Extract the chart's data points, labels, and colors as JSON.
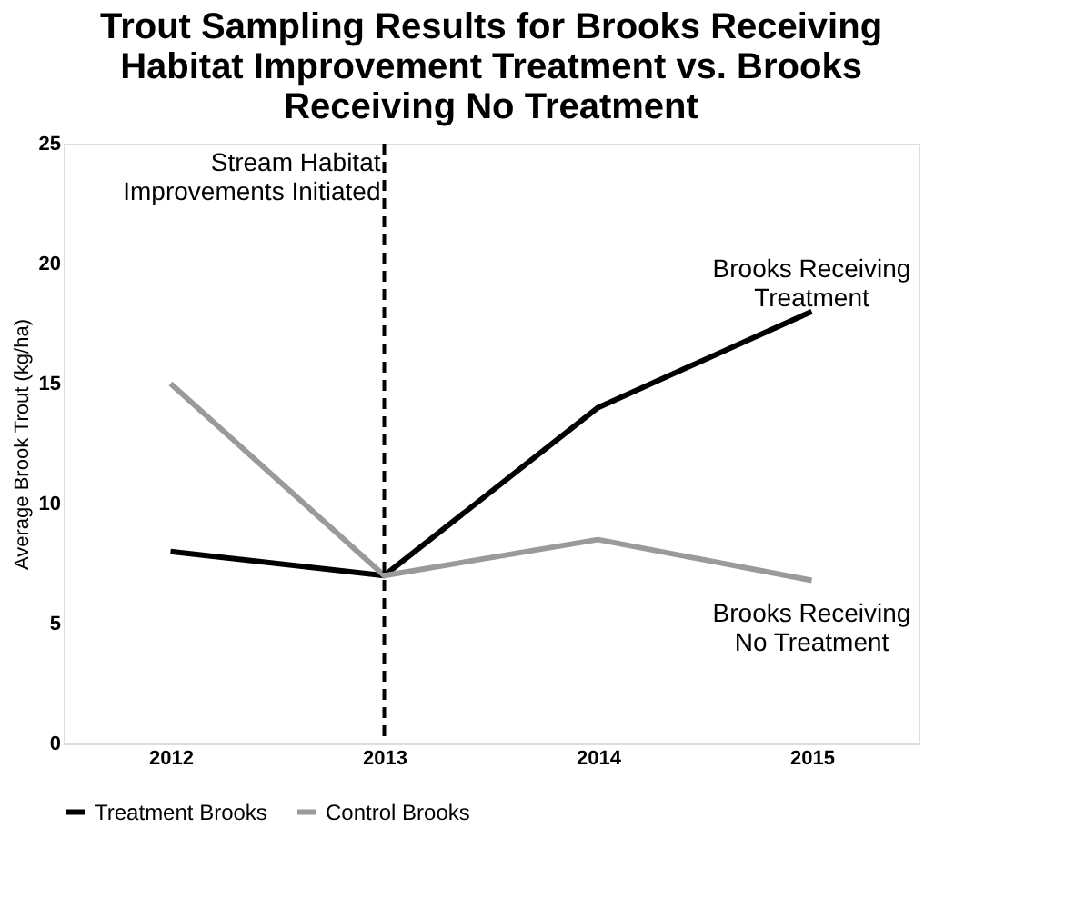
{
  "chart_data": {
    "type": "line",
    "title": [
      "Trout Sampling Results for Brooks Receiving",
      "Habitat Improvement Treatment vs. Brooks",
      "Receiving No Treatment"
    ],
    "ylabel": "Average Brook Trout (kg/ha)",
    "categories": [
      "2012",
      "2013",
      "2014",
      "2015"
    ],
    "series": [
      {
        "name": "Treatment Brooks",
        "color": "#000000",
        "values": [
          8,
          7,
          14,
          18
        ]
      },
      {
        "name": "Control Brooks",
        "color": "#9a9a9a",
        "values": [
          15,
          7,
          8.5,
          6.8
        ]
      }
    ],
    "ylim": [
      0,
      25
    ],
    "yticks": [
      0,
      5,
      10,
      15,
      20,
      25
    ],
    "grid": false,
    "legend": "bottom",
    "marker": "none",
    "line_style": "solid",
    "ref_lines": [
      {
        "axis": "x",
        "value": "2013",
        "label": "Stream Habitat\nImprovements Initiated",
        "color": "#000000",
        "line_style": "dashed"
      }
    ],
    "annotations": [
      "Brooks Receiving\nTreatment",
      "Brooks Receiving\nNo Treatment"
    ]
  }
}
